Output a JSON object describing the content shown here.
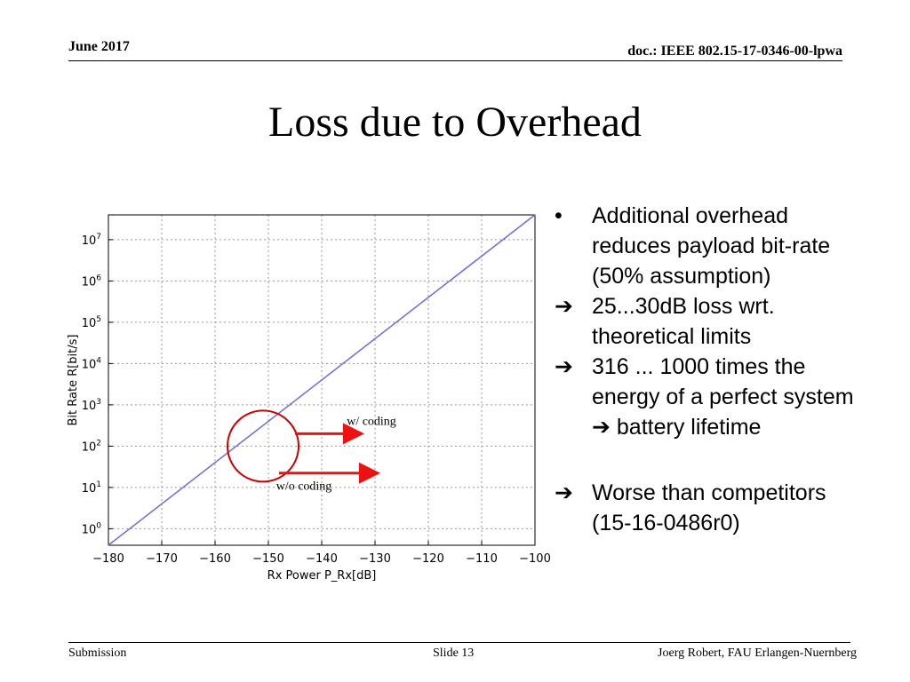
{
  "header": {
    "date": "June 2017",
    "doc_id": "doc.: IEEE 802.15-17-0346-00-lpwa"
  },
  "slide": {
    "title": "Loss due to Overhead"
  },
  "bullets": [
    {
      "marker": "•",
      "text": "Additional overhead reduces payload bit-rate (50% assumption)"
    },
    {
      "marker": "➔",
      "text": "25...30dB loss wrt. theoretical limits"
    },
    {
      "marker": "➔",
      "text": "316 ... 1000 times the energy of a perfect system ➔ battery lifetime"
    },
    {
      "marker": "➔",
      "text": "Worse than competitors (15-16-0486r0)"
    }
  ],
  "footer": {
    "left": "Submission",
    "center": "Slide 13",
    "right": "Joerg Robert, FAU Erlangen-Nuernberg"
  },
  "chart_data": {
    "type": "line",
    "xlabel": "Rx Power P_Rx[dB]",
    "ylabel": "Bit Rate R[bit/s]",
    "xlim": [
      -180,
      -100
    ],
    "ylim_log10": [
      -0.4,
      7.6
    ],
    "y_scale": "log",
    "grid": true,
    "x_ticks": [
      -180,
      -170,
      -160,
      -150,
      -140,
      -130,
      -120,
      -110,
      -100
    ],
    "y_tick_exponents": [
      0,
      1,
      2,
      3,
      4,
      5,
      6,
      7
    ],
    "y_tick_base": "10",
    "series": [
      {
        "x": [
          -180,
          -100
        ],
        "y": [
          0.4,
          40000000.0
        ],
        "color": "#6a6aee"
      }
    ],
    "annotations": [
      {
        "text": "w/ coding",
        "x_from": -145,
        "x_to": -133,
        "y": 100
      },
      {
        "text": "w/o coding",
        "x_from": -148,
        "x_to": -130,
        "y": 60
      }
    ],
    "highlight_circle": {
      "x": -151,
      "y": 100,
      "color": "#cc0000"
    },
    "arrow_color": "#ee1111"
  }
}
